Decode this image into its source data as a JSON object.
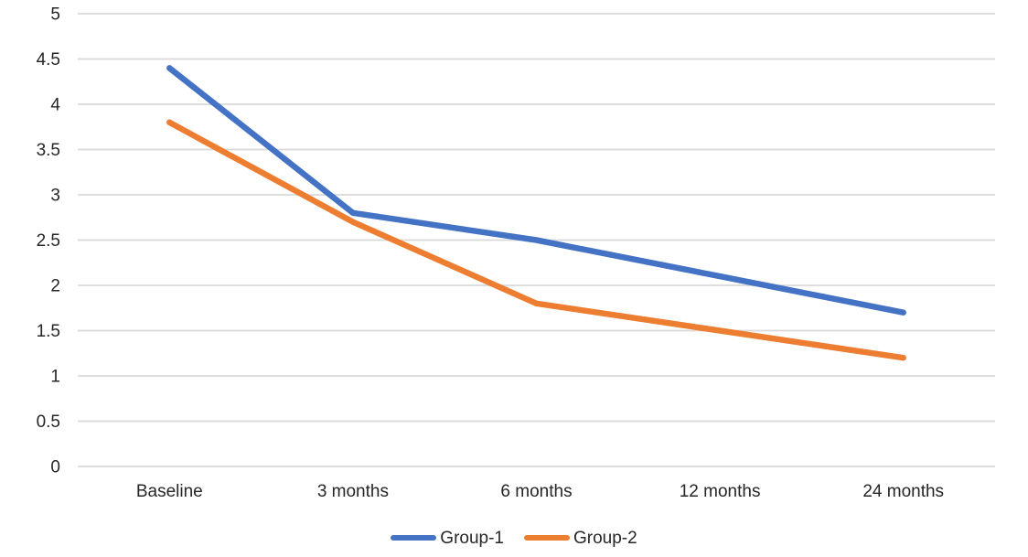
{
  "chart_data": {
    "type": "line",
    "title": "",
    "xlabel": "",
    "ylabel": "",
    "categories": [
      "Baseline",
      "3 months",
      "6 months",
      "12 months",
      "24 months"
    ],
    "series": [
      {
        "name": "Group-1",
        "color": "#4472C4",
        "values": [
          4.4,
          2.8,
          2.5,
          2.1,
          1.7
        ]
      },
      {
        "name": "Group-2",
        "color": "#ED7D31",
        "values": [
          3.8,
          2.7,
          1.8,
          1.5,
          1.2
        ]
      }
    ],
    "ylim": [
      0,
      5
    ],
    "yticks": [
      "0",
      "0.5",
      "1",
      "1.5",
      "2",
      "2.5",
      "3",
      "3.5",
      "4",
      "4.5",
      "5"
    ],
    "grid": true,
    "gridline_color": "#D9D9D9",
    "axis_label_color": "#262626",
    "legend_position": "bottom-center",
    "background_color": "#FFFFFF"
  }
}
